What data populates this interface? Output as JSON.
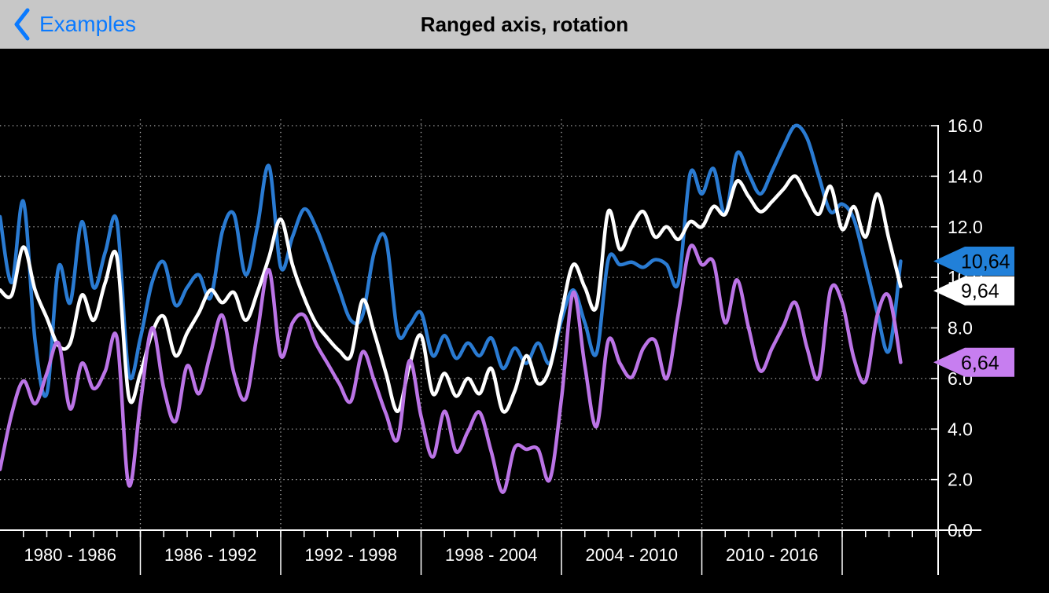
{
  "header": {
    "back_label": "Examples",
    "title": "Ranged axis, rotation"
  },
  "colors": {
    "header_background": "#c7c7c7",
    "accent_blue": "#0a7aff",
    "title_color": "#000000",
    "plot_background": "#000000",
    "axis_color": "#ffffff",
    "grid_color": "#c9c9c9",
    "flag_text_color": "#000000"
  },
  "chart_data": {
    "type": "line",
    "title": "",
    "grid": "dotted",
    "legend": "none",
    "y_axis": {
      "position": "right",
      "min": 0,
      "max": 16,
      "tick_step": 2,
      "tick_labels": [
        "0.0",
        "2.0",
        "4.0",
        "6.0",
        "8.0",
        "10.0",
        "12.0",
        "14.0",
        "16.0"
      ]
    },
    "x_axis": {
      "position": "bottom",
      "boundary_years": [
        1980,
        1986,
        1992,
        1998,
        2004,
        2010,
        2016
      ],
      "range_labels": [
        "1980 - 1986",
        "1986 - 1992",
        "1992 - 1998",
        "1998 - 2004",
        "2004 - 2010",
        "2010 - 2016"
      ],
      "minor_tick_interval_years": 1
    },
    "series": [
      {
        "name": "blue-series",
        "color": "#2a7bd2",
        "marker_label": "10,64",
        "marker_color": "#2180d9",
        "x_start": 1980,
        "x_step": 0.5,
        "values": [
          12.4,
          9.8,
          13.0,
          7.5,
          5.4,
          10.4,
          9.0,
          12.2,
          9.6,
          11.0,
          12.2,
          6.2,
          7.6,
          9.8,
          10.6,
          8.9,
          9.6,
          10.1,
          9.2,
          11.8,
          12.5,
          10.1,
          12.0,
          14.4,
          10.4,
          11.6,
          12.7,
          12.0,
          10.8,
          9.5,
          8.3,
          8.5,
          11.0,
          11.5,
          7.8,
          8.1,
          8.6,
          6.9,
          7.7,
          6.8,
          7.4,
          6.9,
          7.6,
          6.4,
          7.2,
          6.6,
          7.4,
          6.6,
          8.3,
          9.5,
          8.2,
          7.0,
          10.7,
          10.5,
          10.6,
          10.4,
          10.7,
          10.5,
          9.8,
          14.1,
          13.3,
          14.3,
          12.5,
          14.9,
          14.1,
          13.3,
          14.2,
          15.2,
          16.0,
          15.5,
          14.0,
          12.6,
          12.9,
          12.3,
          10.5,
          8.6,
          7.1,
          10.64
        ]
      },
      {
        "name": "white-series",
        "color": "#ffffff",
        "marker_label": "9,64",
        "marker_color": "#ffffff",
        "x_start": 1980,
        "x_step": 0.5,
        "values": [
          9.5,
          9.3,
          11.2,
          9.5,
          8.4,
          7.3,
          7.4,
          9.3,
          8.3,
          9.8,
          10.8,
          5.3,
          6.2,
          7.8,
          8.45,
          6.9,
          7.8,
          8.6,
          9.5,
          9.0,
          9.4,
          8.3,
          9.4,
          10.8,
          12.3,
          10.5,
          9.2,
          8.2,
          7.6,
          7.1,
          6.9,
          9.1,
          7.8,
          6.2,
          4.7,
          6.5,
          7.7,
          5.4,
          6.2,
          5.3,
          6.0,
          5.4,
          6.4,
          4.7,
          5.5,
          6.9,
          5.8,
          6.4,
          8.6,
          10.5,
          9.6,
          8.85,
          12.6,
          11.1,
          12.0,
          12.6,
          11.6,
          12.0,
          11.5,
          12.2,
          12.0,
          12.8,
          12.5,
          13.8,
          13.2,
          12.6,
          13.0,
          13.5,
          14.0,
          13.2,
          12.5,
          13.6,
          11.9,
          12.8,
          11.6,
          13.3,
          11.5,
          9.64
        ]
      },
      {
        "name": "purple-series",
        "color": "#bb74e6",
        "marker_label": "6,64",
        "marker_color": "#c77ef0",
        "x_start": 1980,
        "x_step": 0.5,
        "values": [
          2.4,
          4.6,
          5.9,
          5.0,
          6.2,
          7.4,
          4.8,
          6.6,
          5.6,
          6.3,
          7.6,
          1.8,
          5.0,
          8.0,
          5.6,
          4.3,
          6.5,
          5.4,
          7.0,
          8.5,
          6.2,
          5.2,
          7.8,
          10.3,
          6.9,
          8.2,
          8.5,
          7.4,
          6.6,
          5.8,
          5.1,
          7.05,
          5.9,
          4.6,
          3.6,
          6.7,
          4.5,
          2.9,
          4.7,
          3.1,
          3.9,
          4.66,
          3.1,
          1.5,
          3.26,
          3.2,
          3.2,
          2.0,
          5.2,
          9.4,
          6.5,
          4.1,
          7.5,
          6.6,
          6.05,
          7.2,
          7.5,
          6.0,
          8.6,
          11.2,
          10.5,
          10.6,
          8.2,
          9.9,
          8.0,
          6.3,
          7.2,
          8.1,
          9.0,
          7.2,
          6.05,
          9.5,
          9.0,
          6.8,
          5.9,
          8.5,
          9.25,
          6.64
        ]
      }
    ]
  }
}
